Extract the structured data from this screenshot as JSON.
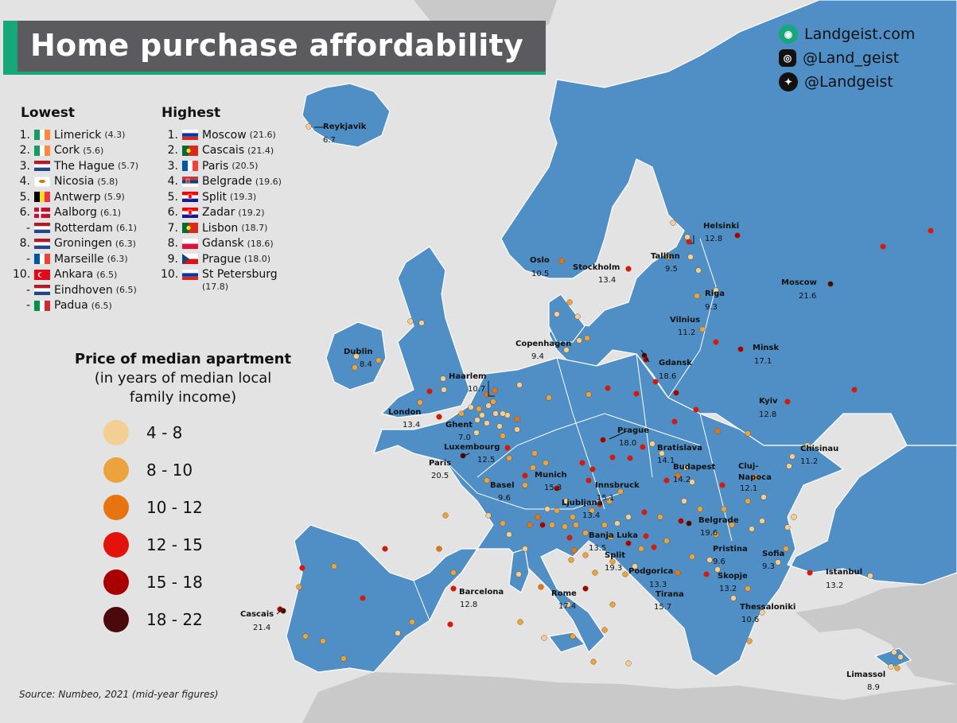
{
  "title": "Home purchase affordability",
  "brand": {
    "site": "Landgeist.com",
    "instagram": "@Land_geist",
    "twitter": "@Landgeist"
  },
  "lowest": {
    "heading": "Lowest",
    "items": [
      {
        "rank": "1.",
        "city": "Limerick",
        "value": "(4.3)",
        "flag": "ireland"
      },
      {
        "rank": "2.",
        "city": "Cork",
        "value": "(5.6)",
        "flag": "ireland"
      },
      {
        "rank": "3.",
        "city": "The Hague",
        "value": "(5.7)",
        "flag": "netherlands"
      },
      {
        "rank": "4.",
        "city": "Nicosia",
        "value": "(5.8)",
        "flag": "cyprus"
      },
      {
        "rank": "5.",
        "city": "Antwerp",
        "value": "(5.9)",
        "flag": "belgium"
      },
      {
        "rank": "6.",
        "city": "Aalborg",
        "value": "(6.1)",
        "flag": "denmark"
      },
      {
        "rank": "-",
        "city": "Rotterdam",
        "value": "(6.1)",
        "flag": "netherlands"
      },
      {
        "rank": "8.",
        "city": "Groningen",
        "value": "(6.3)",
        "flag": "netherlands"
      },
      {
        "rank": "-",
        "city": "Marseille",
        "value": "(6.3)",
        "flag": "france"
      },
      {
        "rank": "10.",
        "city": "Ankara",
        "value": "(6.5)",
        "flag": "turkey"
      },
      {
        "rank": "-",
        "city": "Eindhoven",
        "value": "(6.5)",
        "flag": "netherlands"
      },
      {
        "rank": "-",
        "city": "Padua",
        "value": "(6.5)",
        "flag": "italy"
      }
    ]
  },
  "highest": {
    "heading": "Highest",
    "items": [
      {
        "rank": "1.",
        "city": "Moscow",
        "value": "(21.6)",
        "flag": "russia"
      },
      {
        "rank": "2.",
        "city": "Cascais",
        "value": "(21.4)",
        "flag": "portugal"
      },
      {
        "rank": "3.",
        "city": "Paris",
        "value": "(20.5)",
        "flag": "france"
      },
      {
        "rank": "4.",
        "city": "Belgrade",
        "value": "(19.6)",
        "flag": "serbia"
      },
      {
        "rank": "5.",
        "city": "Split",
        "value": "(19.3)",
        "flag": "croatia"
      },
      {
        "rank": "6.",
        "city": "Zadar",
        "value": "(19.2)",
        "flag": "croatia"
      },
      {
        "rank": "7.",
        "city": "Lisbon",
        "value": "(18.7)",
        "flag": "portugal"
      },
      {
        "rank": "8.",
        "city": "Gdansk",
        "value": "(18.6)",
        "flag": "poland"
      },
      {
        "rank": "9.",
        "city": "Prague",
        "value": "(18.0)",
        "flag": "czechia"
      },
      {
        "rank": "10.",
        "city": "St Petersburg",
        "value": "",
        "flag": "russia"
      }
    ],
    "last_value": "(17.8)"
  },
  "legend": {
    "title_line1": "Price of median apartment",
    "title_line2": "(in years of median local",
    "title_line3": "family income)",
    "bins": [
      {
        "label": "4  -  8",
        "color": "#f3cf93"
      },
      {
        "label": "8  -  10",
        "color": "#eca33c"
      },
      {
        "label": "10  -  12",
        "color": "#e8740f"
      },
      {
        "label": "12  -  15",
        "color": "#e3120b"
      },
      {
        "label": "15  -  18",
        "color": "#a80000"
      },
      {
        "label": "18  -  22",
        "color": "#4a0a0a"
      }
    ]
  },
  "source": "Source: Numbeo, 2021 (mid-year figures)",
  "colors": {
    "land": "#4f8fc6",
    "sea": "#e3e3e3",
    "other_land": "#c9c9c9",
    "title_bg": "#5b5b5f",
    "accent": "#18a77a"
  },
  "cities": [
    {
      "name": "Reykjavik",
      "value": "6.7"
    },
    {
      "name": "Helsinki",
      "value": "12.8"
    },
    {
      "name": "Oslo",
      "value": "10.5"
    },
    {
      "name": "Stockholm",
      "value": "13.4"
    },
    {
      "name": "Tallinn",
      "value": "9.5"
    },
    {
      "name": "Moscow",
      "value": "21.6"
    },
    {
      "name": "Riga",
      "value": "9.3"
    },
    {
      "name": "Vilnius",
      "value": "11.2"
    },
    {
      "name": "Minsk",
      "value": "17.1"
    },
    {
      "name": "Copenhagen",
      "value": "9.4"
    },
    {
      "name": "Dublin",
      "value": "8.4"
    },
    {
      "name": "Gdansk",
      "value": "18.6"
    },
    {
      "name": "Haarlem",
      "value": "10.7"
    },
    {
      "name": "London",
      "value": "13.4"
    },
    {
      "name": "Ghent",
      "value": "7.0"
    },
    {
      "name": "Kyiv",
      "value": "12.8"
    },
    {
      "name": "Prague",
      "value": "18.0"
    },
    {
      "name": "Luxembourg",
      "value": "12.5"
    },
    {
      "name": "Paris",
      "value": "20.5"
    },
    {
      "name": "Bratislava",
      "value": "14.1"
    },
    {
      "name": "Chisinau",
      "value": "11.2"
    },
    {
      "name": "Budapest",
      "value": "14.2"
    },
    {
      "name": "Munich",
      "value": "15.3"
    },
    {
      "name": "Cluj-",
      "value": ""
    },
    {
      "name": "Napoca",
      "value": "12.1"
    },
    {
      "name": "Basel",
      "value": "9.6"
    },
    {
      "name": "Innsbruck",
      "value": "15.1"
    },
    {
      "name": "Ljubljana",
      "value": "13.4"
    },
    {
      "name": "Belgrade",
      "value": "19.6"
    },
    {
      "name": "Banja Luka",
      "value": "13.5"
    },
    {
      "name": "Pristina",
      "value": "9.6"
    },
    {
      "name": "Sofia",
      "value": "9.3"
    },
    {
      "name": "Split",
      "value": "19.3"
    },
    {
      "name": "Podgorica",
      "value": "13.3"
    },
    {
      "name": "Skopje",
      "value": "13.2"
    },
    {
      "name": "Istanbul",
      "value": "13.2"
    },
    {
      "name": "Barcelona",
      "value": "12.8"
    },
    {
      "name": "Rome",
      "value": "17.4"
    },
    {
      "name": "Tirana",
      "value": "15.7"
    },
    {
      "name": "Thessaloniki",
      "value": "10.6"
    },
    {
      "name": "Cascais",
      "value": "21.4"
    },
    {
      "name": "Limassol",
      "value": "8.9"
    }
  ]
}
